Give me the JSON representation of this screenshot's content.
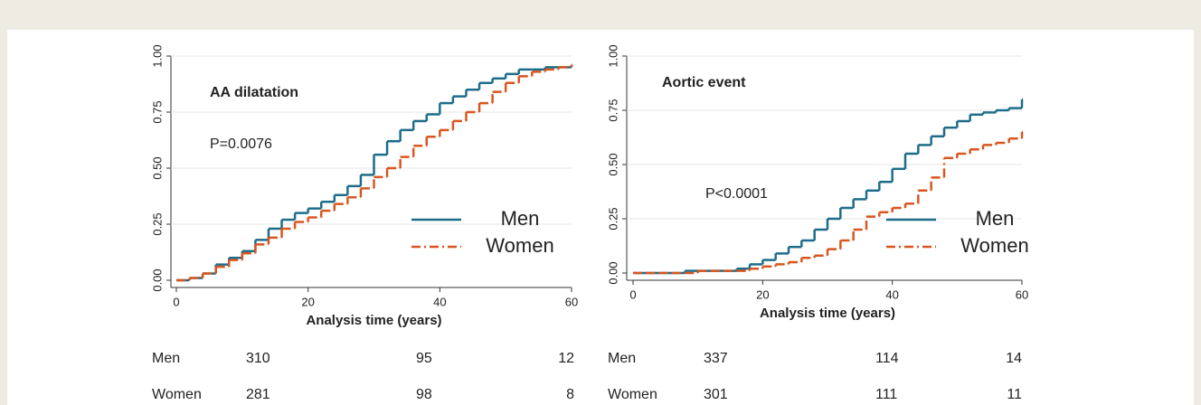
{
  "chart_data": [
    {
      "type": "step",
      "title": "AA dilatation",
      "annotation": "P=0.0076",
      "xlabel": "Analysis time (years)",
      "x": [
        0,
        2,
        4,
        6,
        8,
        10,
        12,
        14,
        16,
        18,
        20,
        22,
        24,
        26,
        28,
        30,
        32,
        34,
        36,
        38,
        40,
        42,
        44,
        46,
        48,
        50,
        52,
        54,
        56,
        58,
        60
      ],
      "series": [
        {
          "name": "Men",
          "color": "#1d6d8a",
          "dash": "solid",
          "values": [
            0,
            0.01,
            0.03,
            0.07,
            0.1,
            0.13,
            0.18,
            0.23,
            0.27,
            0.3,
            0.32,
            0.35,
            0.38,
            0.42,
            0.47,
            0.56,
            0.62,
            0.67,
            0.71,
            0.74,
            0.79,
            0.82,
            0.85,
            0.88,
            0.9,
            0.92,
            0.94,
            0.94,
            0.95,
            0.95,
            0.96
          ]
        },
        {
          "name": "Women",
          "color": "#d8561f",
          "dash": "dashdot",
          "values": [
            0,
            0.01,
            0.03,
            0.06,
            0.09,
            0.12,
            0.16,
            0.19,
            0.23,
            0.26,
            0.28,
            0.31,
            0.34,
            0.37,
            0.41,
            0.46,
            0.5,
            0.55,
            0.6,
            0.64,
            0.67,
            0.71,
            0.75,
            0.79,
            0.84,
            0.88,
            0.91,
            0.93,
            0.94,
            0.95,
            0.96
          ]
        }
      ],
      "xlim": [
        0,
        60
      ],
      "ylim": [
        0,
        1
      ],
      "xticks": [
        0,
        20,
        40,
        60
      ],
      "yticks": [
        {
          "value": 0,
          "label": "0.00"
        },
        {
          "value": 0.25,
          "label": "0.25"
        },
        {
          "value": 0.5,
          "label": "0.50"
        },
        {
          "value": 0.75,
          "label": "0.75"
        },
        {
          "value": 1,
          "label": "1.00"
        }
      ],
      "grid": true,
      "legend": "right",
      "risk_table": [
        {
          "label": "Men",
          "values": [
            310,
            95,
            12
          ]
        },
        {
          "label": "Women",
          "values": [
            281,
            98,
            8
          ]
        }
      ]
    },
    {
      "type": "step",
      "title": "Aortic event",
      "annotation": "P<0.0001",
      "xlabel": "Analysis time (years)",
      "x": [
        0,
        2,
        4,
        6,
        8,
        10,
        12,
        14,
        16,
        18,
        20,
        22,
        24,
        26,
        28,
        30,
        32,
        34,
        36,
        38,
        40,
        42,
        44,
        46,
        48,
        50,
        52,
        54,
        56,
        58,
        60
      ],
      "series": [
        {
          "name": "Men",
          "color": "#1d6d8a",
          "dash": "solid",
          "values": [
            0,
            0,
            0,
            0,
            0.01,
            0.01,
            0.01,
            0.01,
            0.02,
            0.04,
            0.06,
            0.09,
            0.12,
            0.15,
            0.2,
            0.25,
            0.3,
            0.34,
            0.38,
            0.42,
            0.48,
            0.55,
            0.59,
            0.63,
            0.67,
            0.7,
            0.73,
            0.74,
            0.75,
            0.76,
            0.8
          ]
        },
        {
          "name": "Women",
          "color": "#d8561f",
          "dash": "dashdot",
          "values": [
            0,
            0,
            0,
            0,
            0,
            0.01,
            0.01,
            0.01,
            0.01,
            0.02,
            0.03,
            0.04,
            0.05,
            0.07,
            0.08,
            0.11,
            0.15,
            0.2,
            0.26,
            0.28,
            0.3,
            0.32,
            0.38,
            0.44,
            0.53,
            0.55,
            0.57,
            0.59,
            0.6,
            0.62,
            0.65
          ]
        }
      ],
      "xlim": [
        0,
        60
      ],
      "ylim": [
        0,
        1
      ],
      "xticks": [
        0,
        20,
        40,
        60
      ],
      "yticks": [
        {
          "value": 0,
          "label": "0.00"
        },
        {
          "value": 0.25,
          "label": "0.25"
        },
        {
          "value": 0.5,
          "label": "0.50"
        },
        {
          "value": 0.75,
          "label": "0.75"
        },
        {
          "value": 1,
          "label": "1.00"
        }
      ],
      "grid": true,
      "legend": "right",
      "risk_table": [
        {
          "label": "Men",
          "values": [
            337,
            114,
            14
          ]
        },
        {
          "label": "Women",
          "values": [
            301,
            111,
            11
          ]
        }
      ]
    }
  ]
}
